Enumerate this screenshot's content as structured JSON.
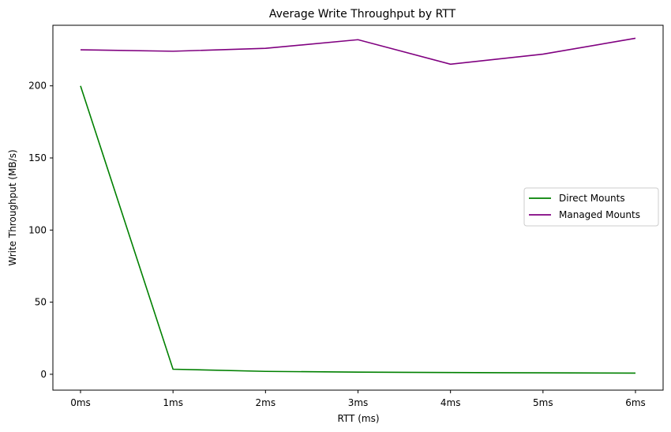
{
  "chart_data": {
    "type": "line",
    "title": "Average Write Throughput by RTT",
    "xlabel": "RTT (ms)",
    "ylabel": "Write Throughput (MB/s)",
    "categories": [
      "0ms",
      "1ms",
      "2ms",
      "3ms",
      "4ms",
      "5ms",
      "6ms"
    ],
    "ylim": [
      -11,
      242
    ],
    "yticks": [
      0,
      50,
      100,
      150,
      200
    ],
    "grid": false,
    "legend_position": "center-right",
    "series": [
      {
        "name": "Direct Mounts",
        "color": "#008000",
        "values": [
          200,
          3.5,
          2,
          1.5,
          1.2,
          1,
          0.8
        ]
      },
      {
        "name": "Managed Mounts",
        "color": "#800080",
        "values": [
          225,
          224,
          226,
          232,
          215,
          222,
          233
        ]
      }
    ]
  }
}
